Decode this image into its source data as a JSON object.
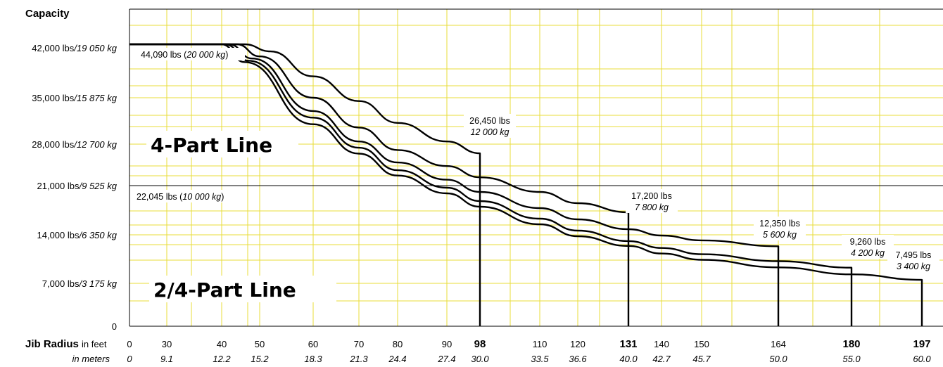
{
  "chart_data": {
    "type": "line",
    "title": "",
    "ylabel": "Capacity",
    "xlabel_main": "Jib Radius",
    "xlabel_unit_ft": "in feet",
    "xlabel_unit_m": "in meters",
    "xlim_ft": [
      0,
      197
    ],
    "ylim_lbs": [
      0,
      49000
    ],
    "grid": true,
    "y_ticks": [
      {
        "lbs": 0,
        "lbs_label": "0",
        "kg_label": ""
      },
      {
        "lbs": 7000,
        "lbs_label": "7,000 lbs",
        "kg_label": "/3 175 kg"
      },
      {
        "lbs": 14000,
        "lbs_label": "14,000 lbs",
        "kg_label": "/6 350 kg"
      },
      {
        "lbs": 21000,
        "lbs_label": "21,000 lbs",
        "kg_label": "/9 525 kg"
      },
      {
        "lbs": 28000,
        "lbs_label": "28,000 lbs",
        "kg_label": "/12 700 kg"
      },
      {
        "lbs": 35000,
        "lbs_label": "35,000 lbs",
        "kg_label": "/15 875 kg"
      },
      {
        "lbs": 42000,
        "lbs_label": "42,000 lbs",
        "kg_label": "/19 050 kg"
      }
    ],
    "x_ticks": [
      {
        "ft": 0,
        "ft_label": "0",
        "m_label": "0",
        "bold": false
      },
      {
        "ft": 30,
        "ft_label": "30",
        "m_label": "9.1",
        "bold": false
      },
      {
        "ft": 40,
        "ft_label": "40",
        "m_label": "12.2",
        "bold": false
      },
      {
        "ft": 50,
        "ft_label": "50",
        "m_label": "15.2",
        "bold": false
      },
      {
        "ft": 60,
        "ft_label": "60",
        "m_label": "18.3",
        "bold": false
      },
      {
        "ft": 70,
        "ft_label": "70",
        "m_label": "21.3",
        "bold": false
      },
      {
        "ft": 80,
        "ft_label": "80",
        "m_label": "24.4",
        "bold": false
      },
      {
        "ft": 90,
        "ft_label": "90",
        "m_label": "27.4",
        "bold": false
      },
      {
        "ft": 98,
        "ft_label": "98",
        "m_label": "30.0",
        "bold": true
      },
      {
        "ft": 110,
        "ft_label": "110",
        "m_label": "33.5",
        "bold": false
      },
      {
        "ft": 120,
        "ft_label": "120",
        "m_label": "36.6",
        "bold": false
      },
      {
        "ft": 131,
        "ft_label": "131",
        "m_label": "40.0",
        "bold": true
      },
      {
        "ft": 140,
        "ft_label": "140",
        "m_label": "42.7",
        "bold": false
      },
      {
        "ft": 150,
        "ft_label": "150",
        "m_label": "45.7",
        "bold": false
      },
      {
        "ft": 164,
        "ft_label": "164",
        "m_label": "50.0",
        "bold": false
      },
      {
        "ft": 180,
        "ft_label": "180",
        "m_label": "55.0",
        "bold": true
      },
      {
        "ft": 197,
        "ft_label": "197",
        "m_label": "60.0",
        "bold": true
      }
    ],
    "max_capacity_line": {
      "lbs": 44090,
      "label": "44,090 lbs",
      "kg_label": "20 000 kg"
    },
    "mode_divider": {
      "lbs": 22045,
      "label": "22,045 lbs",
      "kg_label": "10 000 kg"
    },
    "region_labels": [
      "4-Part Line",
      "2/4-Part Line"
    ],
    "series": [
      {
        "jib_ft": 98,
        "points": [
          [
            0,
            44090
          ],
          [
            46,
            44090
          ],
          [
            52,
            41500
          ],
          [
            60,
            38000
          ],
          [
            70,
            34500
          ],
          [
            80,
            31200
          ],
          [
            90,
            28400
          ],
          [
            98,
            26450
          ]
        ],
        "end_lbs_label": "26,450 lbs",
        "end_kg_label": "12 000 kg"
      },
      {
        "jib_ft": 131,
        "points": [
          [
            0,
            44090
          ],
          [
            44,
            44090
          ],
          [
            50,
            40800
          ],
          [
            60,
            35000
          ],
          [
            70,
            30500
          ],
          [
            80,
            27000
          ],
          [
            90,
            24300
          ],
          [
            98,
            22400
          ],
          [
            110,
            20100
          ],
          [
            120,
            18500
          ],
          [
            131,
            17200
          ]
        ],
        "end_lbs_label": "17,200 lbs",
        "end_kg_label": "7 800 kg"
      },
      {
        "jib_ft": 164,
        "points": [
          [
            0,
            44090
          ],
          [
            42,
            44090
          ],
          [
            48,
            40500
          ],
          [
            60,
            33000
          ],
          [
            70,
            28400
          ],
          [
            80,
            24900
          ],
          [
            90,
            22000
          ],
          [
            98,
            20100
          ],
          [
            110,
            17800
          ],
          [
            120,
            16200
          ],
          [
            131,
            14800
          ],
          [
            140,
            13900
          ],
          [
            150,
            13200
          ],
          [
            164,
            12350
          ]
        ],
        "end_lbs_label": "12,350 lbs",
        "end_kg_label": "5 600 kg"
      },
      {
        "jib_ft": 180,
        "points": [
          [
            0,
            44090
          ],
          [
            41,
            44090
          ],
          [
            47,
            40200
          ],
          [
            60,
            32000
          ],
          [
            70,
            27400
          ],
          [
            80,
            23600
          ],
          [
            90,
            20700
          ],
          [
            98,
            18800
          ],
          [
            110,
            16300
          ],
          [
            120,
            14600
          ],
          [
            131,
            13100
          ],
          [
            140,
            12100
          ],
          [
            150,
            11200
          ],
          [
            164,
            10200
          ],
          [
            180,
            9260
          ]
        ],
        "end_lbs_label": "9,260 lbs",
        "end_kg_label": "4 200 kg"
      },
      {
        "jib_ft": 197,
        "points": [
          [
            0,
            44090
          ],
          [
            40,
            44090
          ],
          [
            46,
            40000
          ],
          [
            60,
            31000
          ],
          [
            70,
            26400
          ],
          [
            80,
            22700
          ],
          [
            90,
            19900
          ],
          [
            98,
            18000
          ],
          [
            110,
            15500
          ],
          [
            120,
            13800
          ],
          [
            131,
            12400
          ],
          [
            140,
            11300
          ],
          [
            150,
            10400
          ],
          [
            164,
            9300
          ],
          [
            180,
            8300
          ],
          [
            197,
            7495
          ]
        ],
        "end_lbs_label": "7,495 lbs",
        "end_kg_label": "3 400 kg"
      }
    ]
  },
  "colors": {
    "grid": "#e8dc3a",
    "line": "#000000"
  }
}
